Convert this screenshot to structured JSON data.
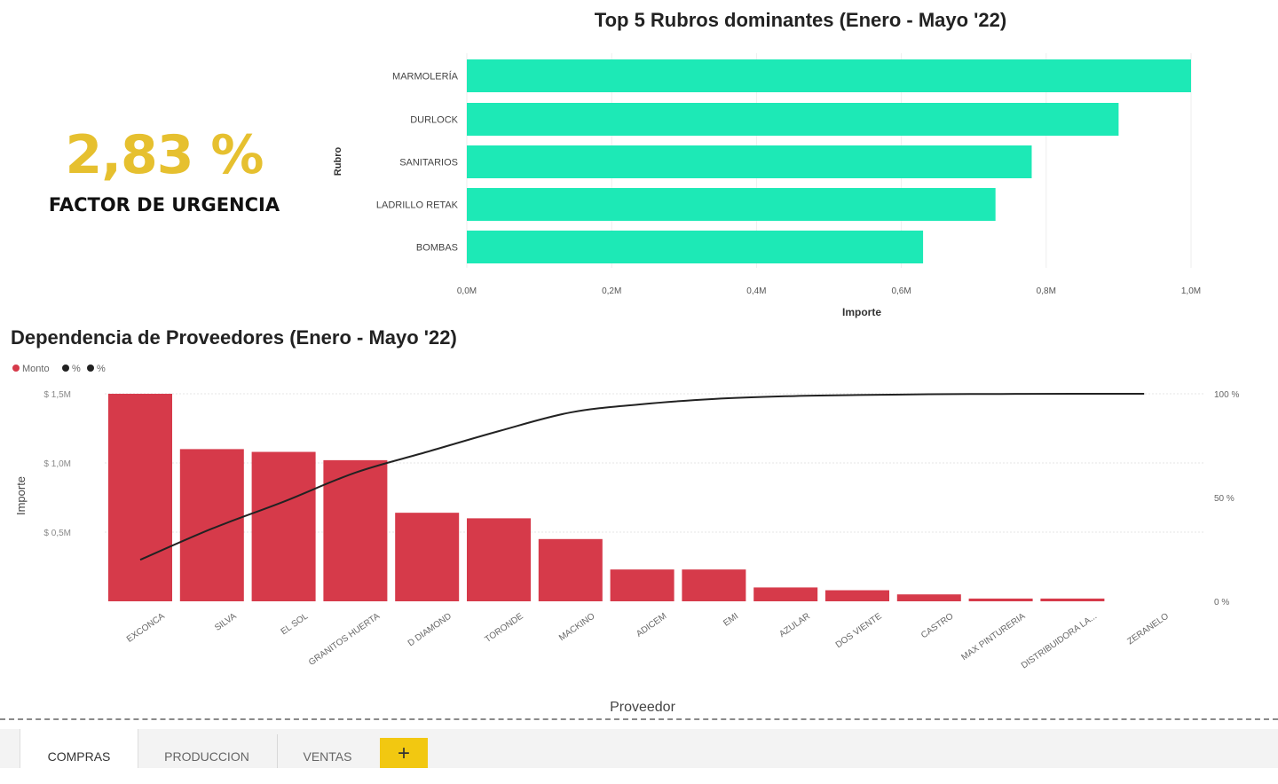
{
  "kpi": {
    "value": "2,83 %",
    "label": "FACTOR DE URGENCIA",
    "color": "#e6c02f"
  },
  "chart_data": [
    {
      "type": "bar",
      "orientation": "horizontal",
      "title": "Top 5 Rubros dominantes (Enero - Mayo '22)",
      "xlabel": "Importe",
      "ylabel": "Rubro",
      "categories": [
        "MARMOLERÍA",
        "DURLOCK",
        "SANITARIOS",
        "LADRILLO RETAK",
        "BOMBAS"
      ],
      "values": [
        1.0,
        0.9,
        0.78,
        0.73,
        0.63
      ],
      "unit": "M",
      "xlim": [
        0,
        1.0
      ],
      "xticks": [
        "0,0M",
        "0,2M",
        "0,4M",
        "0,6M",
        "0,8M",
        "1,0M"
      ],
      "color": "#1de9b6",
      "grid": true
    },
    {
      "type": "bar",
      "title": "Dependencia de Proveedores (Enero - Mayo '22)",
      "xlabel": "Proveedor",
      "ylabel": "Importe",
      "legend": [
        {
          "label": "Monto",
          "color": "#d63a4a"
        },
        {
          "label": "%",
          "color": "#222222"
        },
        {
          "label": "%",
          "color": "#222222"
        }
      ],
      "legend_position": "top-left",
      "categories": [
        "EXCONCA",
        "SILVA",
        "EL SOL",
        "GRANITOS HUERTA",
        "D DIAMOND",
        "TORONDE",
        "MACKINO",
        "ADICEM",
        "EMI",
        "AZULAR",
        "DOS VIENTE",
        "CASTRO",
        "MAX PINTURERIA",
        "DISTRIBUIDORA LA...",
        "ZERANELO"
      ],
      "series": [
        {
          "name": "Monto",
          "axis": "left",
          "color": "#d63a4a",
          "values": [
            1.5,
            1.1,
            1.08,
            1.02,
            0.64,
            0.6,
            0.45,
            0.23,
            0.23,
            0.1,
            0.08,
            0.05,
            0.02,
            0.02,
            0.0
          ]
        },
        {
          "name": "%",
          "axis": "right",
          "type": "line",
          "color": "#222222",
          "values": [
            20,
            35,
            48,
            62,
            72,
            82,
            91,
            95,
            97.5,
            98.8,
            99.4,
            99.8,
            99.9,
            100,
            100
          ]
        }
      ],
      "ylim": [
        0,
        1.5
      ],
      "yticks": [
        "$ 0,5M",
        "$ 1,0M",
        "$ 1,5M"
      ],
      "y2lim": [
        0,
        100
      ],
      "y2ticks": [
        "0 %",
        "50 %",
        "100 %"
      ],
      "grid": true
    }
  ],
  "tabs": [
    {
      "label": "COMPRAS",
      "active": true
    },
    {
      "label": "PRODUCCION",
      "active": false
    },
    {
      "label": "VENTAS",
      "active": false
    }
  ],
  "add_tab": {
    "icon": "plus-icon",
    "glyph": "+",
    "color": "#f2c811"
  }
}
